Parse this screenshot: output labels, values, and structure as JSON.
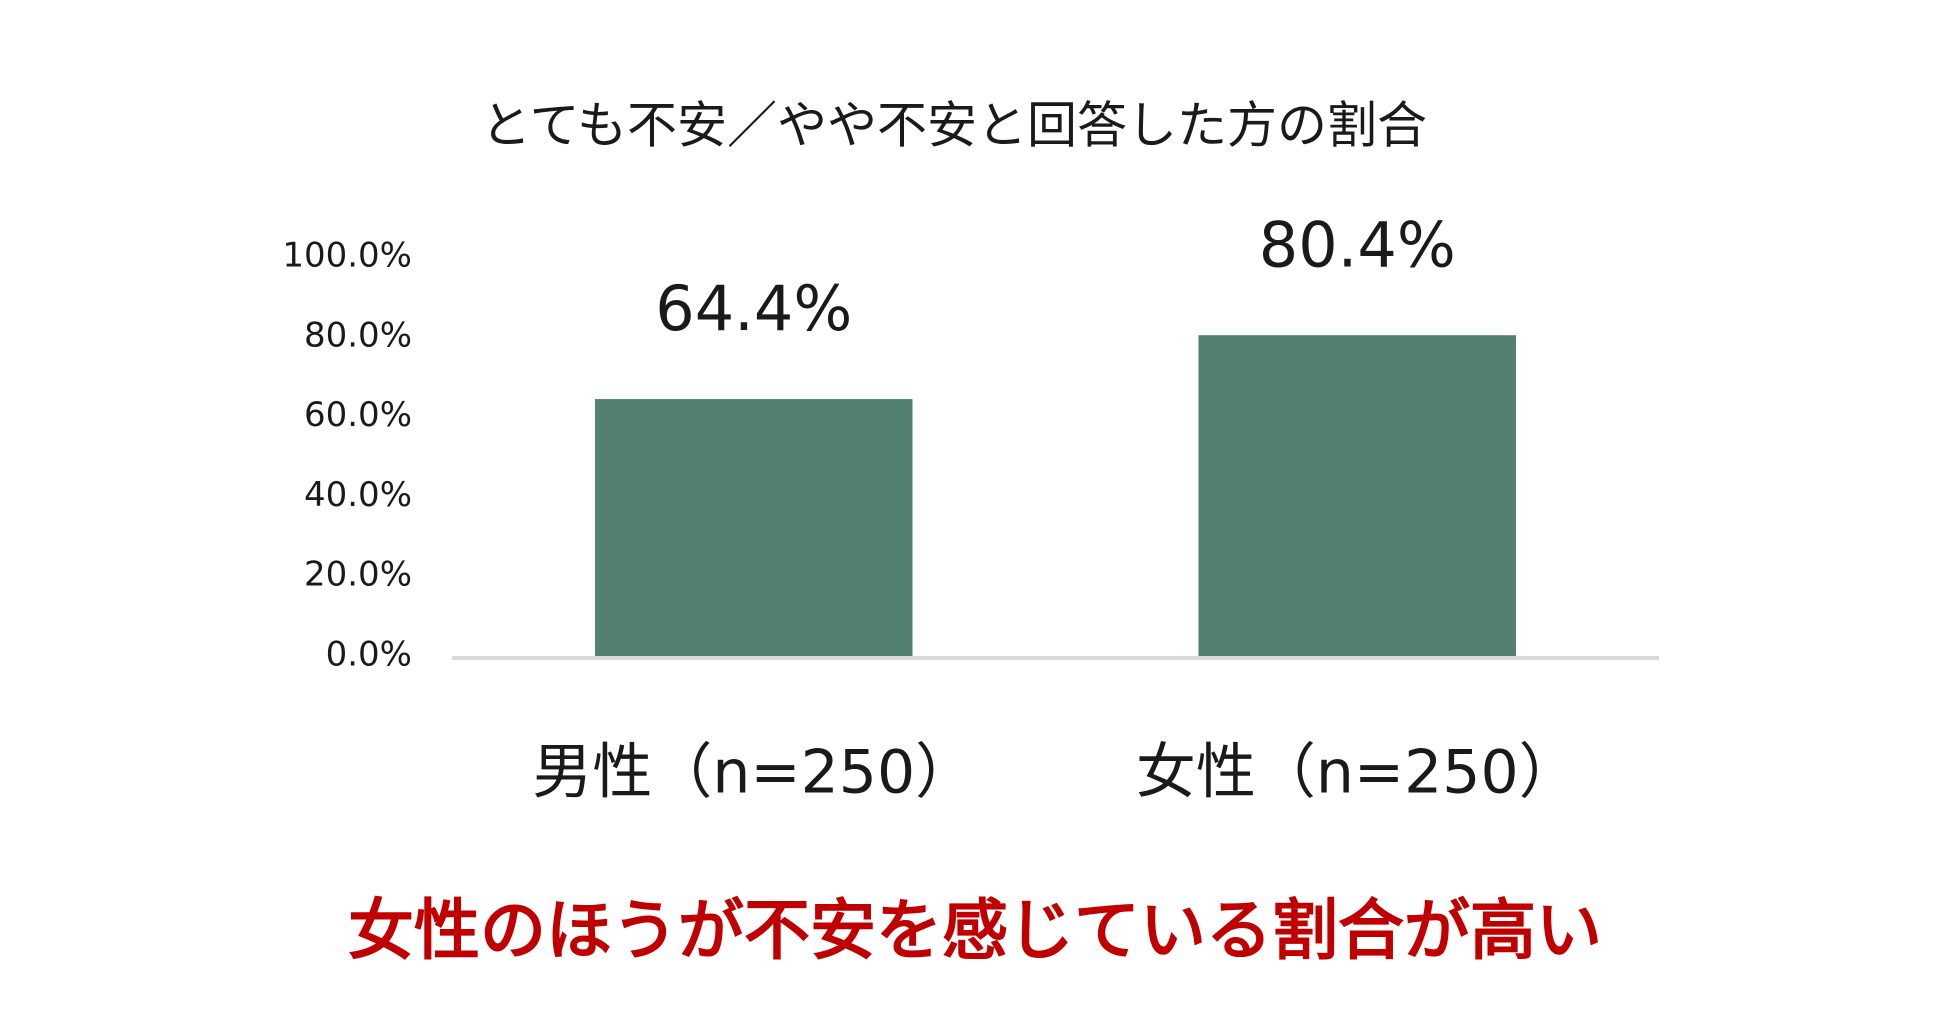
{
  "chart_data": {
    "type": "bar",
    "title": "とても不安／やや不安と回答した方の割合",
    "categories": [
      "男性（n=250）",
      "女性（n=250）"
    ],
    "values": [
      64.4,
      80.4
    ],
    "value_labels": [
      "64.4%",
      "80.4%"
    ],
    "color": "#52806f",
    "ylim": [
      0,
      100
    ],
    "yticks": [
      {
        "value": 0,
        "label": "0.0%"
      },
      {
        "value": 20,
        "label": "20.0%"
      },
      {
        "value": 40,
        "label": "40.0%"
      },
      {
        "value": 60,
        "label": "60.0%"
      },
      {
        "value": 80,
        "label": "80.0%"
      },
      {
        "value": 100,
        "label": "100.0%"
      }
    ],
    "grid": false,
    "annotation": "女性のほうが不安を感じている割合が高い"
  }
}
